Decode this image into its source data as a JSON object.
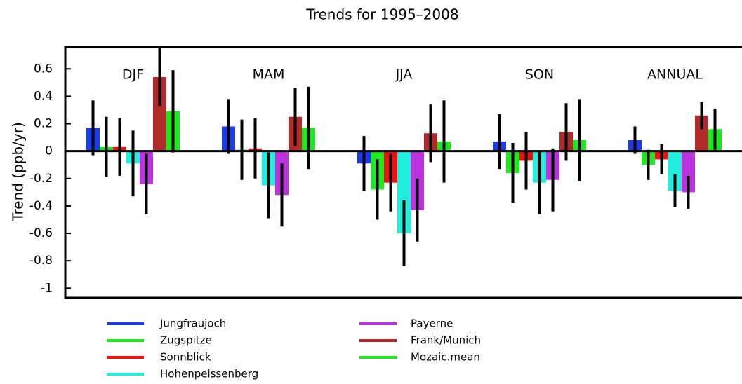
{
  "chart_data": {
    "type": "bar",
    "title": "Trends for 1995–2008",
    "y_label": "Trend (ppb/yr)",
    "categories": [
      "DJF",
      "MAM",
      "JJA",
      "SON",
      "ANNUAL"
    ],
    "series": [
      {
        "name": "Jungfraujoch",
        "color": "#1a3ce8",
        "values": [
          0.17,
          0.18,
          -0.09,
          0.07,
          0.08
        ],
        "errors": [
          0.2,
          0.2,
          0.2,
          0.2,
          0.1
        ]
      },
      {
        "name": "Zugspitze",
        "color": "#22e822",
        "values": [
          0.03,
          0.01,
          -0.28,
          -0.16,
          -0.1
        ],
        "errors": [
          0.22,
          0.22,
          0.22,
          0.22,
          0.11
        ]
      },
      {
        "name": "Sonnblick",
        "color": "#ee1111",
        "values": [
          0.03,
          0.02,
          -0.23,
          -0.07,
          -0.06
        ],
        "errors": [
          0.21,
          0.22,
          0.21,
          0.21,
          0.11
        ]
      },
      {
        "name": "Hohenpeissenberg",
        "color": "#22eedd",
        "values": [
          -0.09,
          -0.25,
          -0.6,
          -0.23,
          -0.29
        ],
        "errors": [
          0.24,
          0.24,
          0.24,
          0.23,
          0.12
        ]
      },
      {
        "name": "Payerne",
        "color": "#bb33dd",
        "values": [
          -0.24,
          -0.32,
          -0.43,
          -0.21,
          -0.3
        ],
        "errors": [
          0.22,
          0.23,
          0.23,
          0.23,
          0.12
        ]
      },
      {
        "name": "Frank/Munich",
        "color": "#b02a2a",
        "values": [
          0.54,
          0.25,
          0.13,
          0.14,
          0.26
        ],
        "errors": [
          0.21,
          0.21,
          0.21,
          0.21,
          0.1
        ]
      },
      {
        "name": "Mozaic.mean",
        "color": "#1de81d",
        "values": [
          0.29,
          0.17,
          0.07,
          0.08,
          0.16
        ],
        "errors": [
          0.3,
          0.3,
          0.3,
          0.3,
          0.15
        ]
      }
    ],
    "ylim": [
      -1.07,
      0.76
    ],
    "yticks": [
      -1,
      -0.8,
      -0.6,
      -0.4,
      -0.2,
      0,
      0.2,
      0.4,
      0.6
    ]
  }
}
